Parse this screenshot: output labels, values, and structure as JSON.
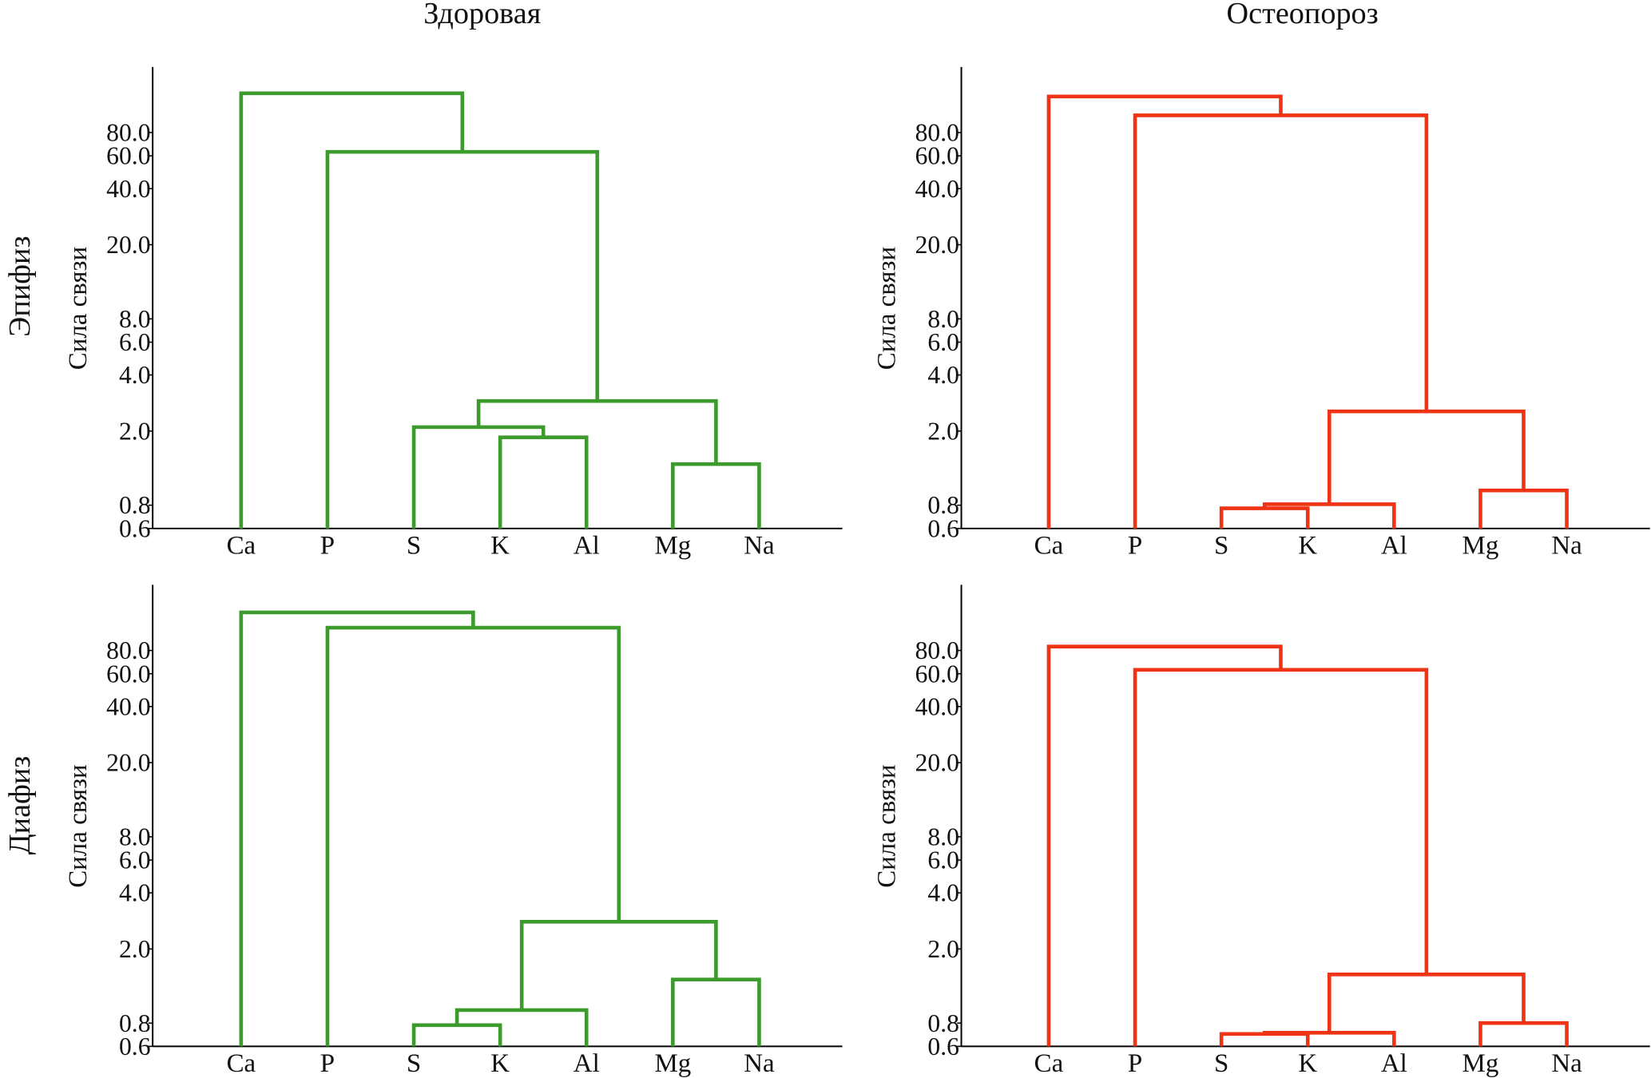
{
  "column_titles": [
    "Здоровая",
    "Остеопороз"
  ],
  "row_labels": [
    "Эпифиз",
    "Диафиз"
  ],
  "colors": {
    "healthy": "#3c9b2c",
    "osteoporosis": "#ee3414"
  },
  "chart_data": [
    {
      "type": "dendrogram",
      "row": "Эпифиз",
      "column": "Здоровая",
      "color": "#3c9b2c",
      "ylabel": "Сила связи",
      "yscale": "log",
      "ylim": [
        0.6,
        180
      ],
      "yticks": [
        0.6,
        0.8,
        2.0,
        4.0,
        6.0,
        8.0,
        20.0,
        40.0,
        60.0,
        80.0
      ],
      "ytick_labels": [
        "0.6",
        "0.8",
        "2.0",
        "4.0",
        "6.0",
        "8.0",
        "20.0",
        "40.0",
        "60.0",
        "80.0"
      ],
      "leaves": [
        "Ca",
        "P",
        "S",
        "K",
        "Al",
        "Mg",
        "Na"
      ],
      "merges": [
        [
          3,
          4,
          1.85
        ],
        [
          2,
          7,
          2.1
        ],
        [
          5,
          6,
          1.33
        ],
        [
          8,
          9,
          2.9
        ],
        [
          1,
          10,
          63
        ],
        [
          0,
          11,
          130
        ]
      ]
    },
    {
      "type": "dendrogram",
      "row": "Эпифиз",
      "column": "Остеопороз",
      "color": "#ee3414",
      "ylabel": "Сила связи",
      "yscale": "log",
      "ylim": [
        0.6,
        180
      ],
      "yticks": [
        0.6,
        0.8,
        2.0,
        4.0,
        6.0,
        8.0,
        20.0,
        40.0,
        60.0,
        80.0
      ],
      "ytick_labels": [
        "0.6",
        "0.8",
        "2.0",
        "4.0",
        "6.0",
        "8.0",
        "20.0",
        "40.0",
        "60.0",
        "80.0"
      ],
      "leaves": [
        "Ca",
        "P",
        "S",
        "K",
        "Al",
        "Mg",
        "Na"
      ],
      "merges": [
        [
          2,
          3,
          0.77
        ],
        [
          7,
          4,
          0.81
        ],
        [
          5,
          6,
          0.96
        ],
        [
          8,
          9,
          2.55
        ],
        [
          1,
          10,
          99
        ],
        [
          0,
          11,
          125
        ]
      ]
    },
    {
      "type": "dendrogram",
      "row": "Диафиз",
      "column": "Здоровая",
      "color": "#3c9b2c",
      "ylabel": "Сила связи",
      "yscale": "log",
      "ylim": [
        0.6,
        180
      ],
      "yticks": [
        0.6,
        0.8,
        2.0,
        4.0,
        6.0,
        8.0,
        20.0,
        40.0,
        60.0,
        80.0
      ],
      "ytick_labels": [
        "0.6",
        "0.8",
        "2.0",
        "4.0",
        "6.0",
        "8.0",
        "20.0",
        "40.0",
        "60.0",
        "80.0"
      ],
      "leaves": [
        "Ca",
        "P",
        "S",
        "K",
        "Al",
        "Mg",
        "Na"
      ],
      "merges": [
        [
          2,
          3,
          0.78
        ],
        [
          7,
          4,
          0.94
        ],
        [
          5,
          6,
          1.37
        ],
        [
          8,
          9,
          2.8
        ],
        [
          1,
          10,
          106
        ],
        [
          0,
          11,
          128
        ]
      ]
    },
    {
      "type": "dendrogram",
      "row": "Диафиз",
      "column": "Остеопороз",
      "color": "#ee3414",
      "ylabel": "Сила связи",
      "yscale": "log",
      "ylim": [
        0.6,
        180
      ],
      "yticks": [
        0.6,
        0.8,
        2.0,
        4.0,
        6.0,
        8.0,
        20.0,
        40.0,
        60.0,
        80.0
      ],
      "ytick_labels": [
        "0.6",
        "0.8",
        "2.0",
        "4.0",
        "6.0",
        "8.0",
        "20.0",
        "40.0",
        "60.0",
        "80.0"
      ],
      "leaves": [
        "Ca",
        "P",
        "S",
        "K",
        "Al",
        "Mg",
        "Na"
      ],
      "merges": [
        [
          2,
          3,
          0.7
        ],
        [
          7,
          4,
          0.71
        ],
        [
          5,
          6,
          0.8
        ],
        [
          8,
          9,
          1.46
        ],
        [
          1,
          10,
          63
        ],
        [
          0,
          11,
          84
        ]
      ]
    }
  ]
}
